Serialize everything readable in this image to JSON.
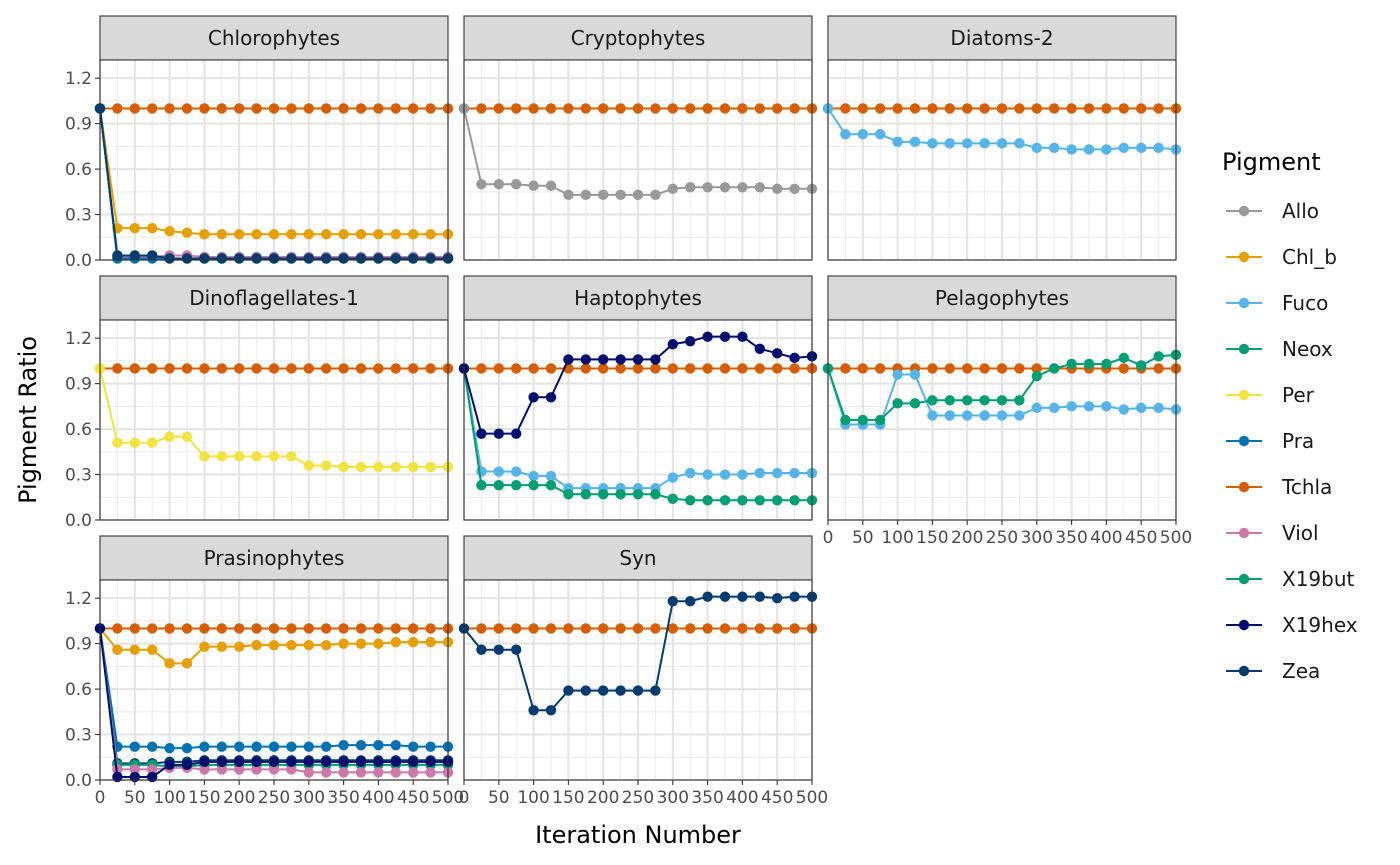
{
  "chart_data": {
    "type": "line",
    "xlabel": "Iteration Number",
    "ylabel": "Pigment Ratio",
    "xlim": [
      0,
      500
    ],
    "ylim": [
      0,
      1.32
    ],
    "x_ticks": [
      0,
      50,
      100,
      150,
      200,
      250,
      300,
      350,
      400,
      450,
      500
    ],
    "y_ticks": [
      0.0,
      0.3,
      0.6,
      0.9,
      1.2
    ],
    "x_tick_labels": [
      "0",
      "50",
      "100",
      "150",
      "200",
      "250",
      "300",
      "350",
      "400",
      "450",
      "500"
    ],
    "y_tick_labels": [
      "0.0",
      "0.3",
      "0.6",
      "0.9",
      "1.2"
    ],
    "grid": true,
    "legend_position": "right",
    "legend_title": "Pigment",
    "pigments": [
      {
        "name": "Allo",
        "color": "#999999"
      },
      {
        "name": "Chl_b",
        "color": "#E69F00"
      },
      {
        "name": "Fuco",
        "color": "#56B4E9"
      },
      {
        "name": "Neox",
        "color": "#009E73"
      },
      {
        "name": "Per",
        "color": "#F0E442"
      },
      {
        "name": "Pra",
        "color": "#0072B2"
      },
      {
        "name": "Tchla",
        "color": "#D55E00"
      },
      {
        "name": "Viol",
        "color": "#CC79A7"
      },
      {
        "name": "X19but",
        "color": "#009E73"
      },
      {
        "name": "X19hex",
        "color": "#000F6E"
      },
      {
        "name": "Zea",
        "color": "#003C70"
      }
    ],
    "x": [
      0,
      25,
      50,
      75,
      100,
      125,
      150,
      175,
      200,
      225,
      250,
      275,
      300,
      325,
      350,
      375,
      400,
      425,
      450,
      475,
      500
    ],
    "panels": [
      {
        "title": "Chlorophytes",
        "series": [
          {
            "name": "Tchla",
            "values": [
              1,
              1,
              1,
              1,
              1,
              1,
              1,
              1,
              1,
              1,
              1,
              1,
              1,
              1,
              1,
              1,
              1,
              1,
              1,
              1,
              1
            ]
          },
          {
            "name": "Chl_b",
            "values": [
              1,
              0.21,
              0.21,
              0.21,
              0.19,
              0.18,
              0.17,
              0.17,
              0.17,
              0.17,
              0.17,
              0.17,
              0.17,
              0.17,
              0.17,
              0.17,
              0.17,
              0.17,
              0.17,
              0.17,
              0.17
            ]
          },
          {
            "name": "Viol",
            "values": [
              1,
              0.02,
              0.02,
              0.02,
              0.03,
              0.03,
              0.02,
              0.02,
              0.02,
              0.02,
              0.02,
              0.02,
              0.02,
              0.02,
              0.02,
              0.02,
              0.02,
              0.02,
              0.02,
              0.02,
              0.02
            ]
          },
          {
            "name": "Neox",
            "values": [
              1,
              0.01,
              0.01,
              0.01,
              0.01,
              0.01,
              0.01,
              0.01,
              0.01,
              0.01,
              0.01,
              0.01,
              0.01,
              0.01,
              0.01,
              0.01,
              0.01,
              0.01,
              0.01,
              0.01,
              0.01
            ]
          },
          {
            "name": "Pra",
            "values": [
              1,
              0.01,
              0.01,
              0.01,
              0.01,
              0.01,
              0.01,
              0.01,
              0.01,
              0.01,
              0.01,
              0.01,
              0.01,
              0.01,
              0.01,
              0.01,
              0.01,
              0.01,
              0.01,
              0.01,
              0.01
            ]
          },
          {
            "name": "Zea",
            "values": [
              1,
              0.03,
              0.03,
              0.03,
              0.01,
              0.01,
              0.01,
              0.01,
              0.01,
              0.01,
              0.01,
              0.01,
              0.01,
              0.01,
              0.01,
              0.01,
              0.01,
              0.01,
              0.01,
              0.01,
              0.01
            ]
          }
        ]
      },
      {
        "title": "Cryptophytes",
        "series": [
          {
            "name": "Tchla",
            "values": [
              1,
              1,
              1,
              1,
              1,
              1,
              1,
              1,
              1,
              1,
              1,
              1,
              1,
              1,
              1,
              1,
              1,
              1,
              1,
              1,
              1
            ]
          },
          {
            "name": "Allo",
            "values": [
              1,
              0.5,
              0.5,
              0.5,
              0.49,
              0.49,
              0.43,
              0.43,
              0.43,
              0.43,
              0.43,
              0.43,
              0.47,
              0.48,
              0.48,
              0.48,
              0.48,
              0.48,
              0.47,
              0.47,
              0.47
            ]
          }
        ]
      },
      {
        "title": "Diatoms-2",
        "series": [
          {
            "name": "Tchla",
            "values": [
              1,
              1,
              1,
              1,
              1,
              1,
              1,
              1,
              1,
              1,
              1,
              1,
              1,
              1,
              1,
              1,
              1,
              1,
              1,
              1,
              1
            ]
          },
          {
            "name": "Fuco",
            "values": [
              1,
              0.83,
              0.83,
              0.83,
              0.78,
              0.78,
              0.77,
              0.77,
              0.77,
              0.77,
              0.77,
              0.77,
              0.74,
              0.74,
              0.73,
              0.73,
              0.73,
              0.74,
              0.74,
              0.74,
              0.73
            ]
          }
        ]
      },
      {
        "title": "Dinoflagellates-1",
        "series": [
          {
            "name": "Tchla",
            "values": [
              1,
              1,
              1,
              1,
              1,
              1,
              1,
              1,
              1,
              1,
              1,
              1,
              1,
              1,
              1,
              1,
              1,
              1,
              1,
              1,
              1
            ]
          },
          {
            "name": "Per",
            "values": [
              1,
              0.51,
              0.51,
              0.51,
              0.55,
              0.55,
              0.42,
              0.42,
              0.42,
              0.42,
              0.42,
              0.42,
              0.36,
              0.36,
              0.35,
              0.35,
              0.35,
              0.35,
              0.35,
              0.35,
              0.35
            ]
          }
        ]
      },
      {
        "title": "Haptophytes",
        "series": [
          {
            "name": "Fuco",
            "values": [
              1,
              0.32,
              0.32,
              0.32,
              0.29,
              0.29,
              0.21,
              0.21,
              0.21,
              0.21,
              0.21,
              0.21,
              0.28,
              0.31,
              0.3,
              0.3,
              0.3,
              0.31,
              0.31,
              0.31,
              0.31
            ]
          },
          {
            "name": "X19but",
            "values": [
              1,
              0.23,
              0.23,
              0.23,
              0.23,
              0.23,
              0.17,
              0.17,
              0.17,
              0.17,
              0.17,
              0.17,
              0.14,
              0.13,
              0.13,
              0.13,
              0.13,
              0.13,
              0.13,
              0.13,
              0.13
            ]
          },
          {
            "name": "Tchla",
            "values": [
              1,
              1,
              1,
              1,
              1,
              1,
              1,
              1,
              1,
              1,
              1,
              1,
              1,
              1,
              1,
              1,
              1,
              1,
              1,
              1,
              1
            ]
          },
          {
            "name": "X19hex",
            "values": [
              1,
              0.57,
              0.57,
              0.57,
              0.81,
              0.81,
              1.06,
              1.06,
              1.06,
              1.06,
              1.06,
              1.06,
              1.16,
              1.18,
              1.21,
              1.21,
              1.21,
              1.13,
              1.1,
              1.07,
              1.08
            ]
          }
        ]
      },
      {
        "title": "Pelagophytes",
        "series": [
          {
            "name": "Tchla",
            "values": [
              1,
              1,
              1,
              1,
              1,
              1,
              1,
              1,
              1,
              1,
              1,
              1,
              1,
              1,
              1,
              1,
              1,
              1,
              1,
              1,
              1
            ]
          },
          {
            "name": "Fuco",
            "values": [
              1,
              0.63,
              0.63,
              0.63,
              0.96,
              0.96,
              0.69,
              0.69,
              0.69,
              0.69,
              0.69,
              0.69,
              0.74,
              0.74,
              0.75,
              0.75,
              0.75,
              0.73,
              0.74,
              0.74,
              0.73
            ]
          },
          {
            "name": "X19but",
            "values": [
              1,
              0.66,
              0.66,
              0.66,
              0.77,
              0.77,
              0.79,
              0.79,
              0.79,
              0.79,
              0.79,
              0.79,
              0.95,
              1.0,
              1.03,
              1.03,
              1.03,
              1.07,
              1.02,
              1.08,
              1.09
            ]
          }
        ]
      },
      {
        "title": "Prasinophytes",
        "series": [
          {
            "name": "Tchla",
            "values": [
              1,
              1,
              1,
              1,
              1,
              1,
              1,
              1,
              1,
              1,
              1,
              1,
              1,
              1,
              1,
              1,
              1,
              1,
              1,
              1,
              1
            ]
          },
          {
            "name": "Chl_b",
            "values": [
              1,
              0.86,
              0.86,
              0.86,
              0.77,
              0.77,
              0.88,
              0.88,
              0.88,
              0.89,
              0.89,
              0.89,
              0.89,
              0.89,
              0.9,
              0.9,
              0.9,
              0.91,
              0.91,
              0.91,
              0.91
            ]
          },
          {
            "name": "Pra",
            "values": [
              1,
              0.22,
              0.22,
              0.22,
              0.21,
              0.21,
              0.22,
              0.22,
              0.22,
              0.22,
              0.22,
              0.22,
              0.22,
              0.22,
              0.23,
              0.23,
              0.23,
              0.23,
              0.22,
              0.22,
              0.22
            ]
          },
          {
            "name": "Zea",
            "values": [
              1,
              0.11,
              0.11,
              0.11,
              0.12,
              0.12,
              0.13,
              0.13,
              0.13,
              0.13,
              0.13,
              0.13,
              0.13,
              0.13,
              0.13,
              0.13,
              0.13,
              0.13,
              0.13,
              0.13,
              0.13
            ]
          },
          {
            "name": "Neox",
            "values": [
              1,
              0.1,
              0.1,
              0.1,
              0.09,
              0.09,
              0.1,
              0.1,
              0.1,
              0.1,
              0.1,
              0.1,
              0.1,
              0.1,
              0.1,
              0.1,
              0.1,
              0.1,
              0.1,
              0.1,
              0.1
            ]
          },
          {
            "name": "Viol",
            "values": [
              1,
              0.07,
              0.07,
              0.07,
              0.08,
              0.08,
              0.07,
              0.07,
              0.07,
              0.07,
              0.07,
              0.07,
              0.05,
              0.05,
              0.05,
              0.05,
              0.05,
              0.05,
              0.05,
              0.05,
              0.05
            ]
          },
          {
            "name": "X19hex",
            "values": [
              1,
              0.02,
              0.02,
              0.02,
              0.1,
              0.1,
              0.12,
              0.12,
              0.12,
              0.12,
              0.12,
              0.12,
              0.12,
              0.12,
              0.12,
              0.12,
              0.12,
              0.12,
              0.12,
              0.12,
              0.12
            ]
          }
        ]
      },
      {
        "title": "Syn",
        "series": [
          {
            "name": "Tchla",
            "values": [
              1,
              1,
              1,
              1,
              1,
              1,
              1,
              1,
              1,
              1,
              1,
              1,
              1,
              1,
              1,
              1,
              1,
              1,
              1,
              1,
              1
            ]
          },
          {
            "name": "Zea",
            "values": [
              1,
              0.86,
              0.86,
              0.86,
              0.46,
              0.46,
              0.59,
              0.59,
              0.59,
              0.59,
              0.59,
              0.59,
              1.18,
              1.18,
              1.21,
              1.21,
              1.21,
              1.21,
              1.2,
              1.21,
              1.21
            ]
          }
        ]
      }
    ]
  }
}
